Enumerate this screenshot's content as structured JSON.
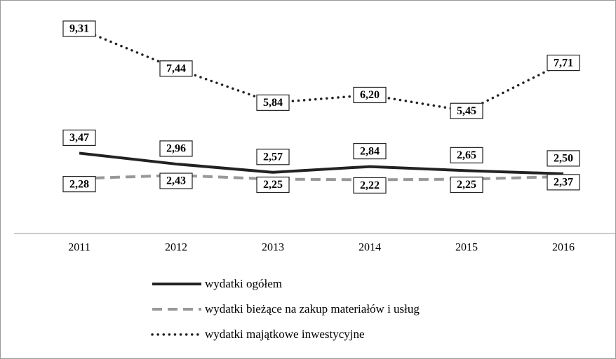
{
  "chart_data": {
    "type": "line",
    "categories": [
      "2011",
      "2012",
      "2013",
      "2014",
      "2015",
      "2016"
    ],
    "series": [
      {
        "name": "wydatki ogółem",
        "color": "#222222",
        "style": "solid",
        "values": [
          3.47,
          2.96,
          2.57,
          2.84,
          2.65,
          2.5
        ],
        "value_labels": [
          "3,47",
          "2,96",
          "2,57",
          "2,84",
          "2,65",
          "2,50"
        ]
      },
      {
        "name": "wydatki bieżące na zakup materiałów i usług",
        "color": "#999999",
        "style": "dashed",
        "values": [
          2.28,
          2.43,
          2.25,
          2.22,
          2.25,
          2.37
        ],
        "value_labels": [
          "2,28",
          "2,43",
          "2,25",
          "2,22",
          "2,25",
          "2,37"
        ]
      },
      {
        "name": "wydatki majątkowe inwestycyjne",
        "color": "#222222",
        "style": "dotted",
        "values": [
          9.31,
          7.44,
          5.84,
          6.2,
          5.45,
          7.71
        ],
        "value_labels": [
          "9,31",
          "7,44",
          "5,84",
          "6,20",
          "5,45",
          "7,71"
        ]
      }
    ],
    "ylim": [
      -0.3,
      10
    ]
  }
}
